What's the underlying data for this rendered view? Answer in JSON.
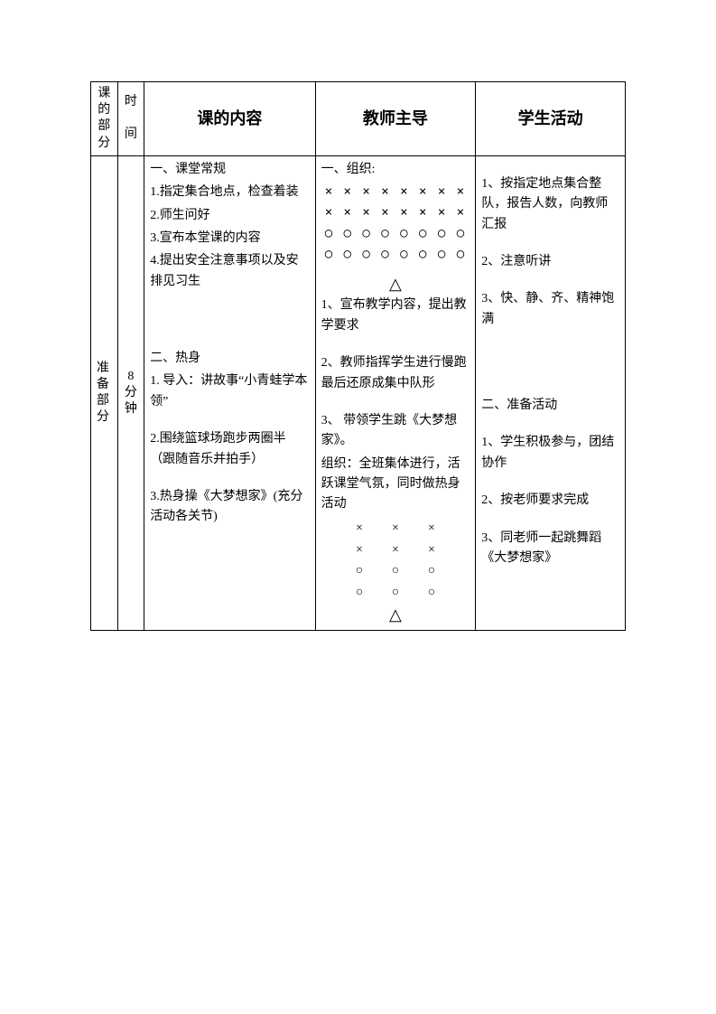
{
  "headers": {
    "part": "课的部分",
    "time": "时\n\n间",
    "content": "课的内容",
    "teacher": "教师主导",
    "student": "学生活动"
  },
  "row": {
    "partLabel": "准备部分",
    "timeLabel": "8分钟",
    "content": {
      "s1_title": "一、课堂常规",
      "s1_i1": "1.指定集合地点，检查着装",
      "s1_i2": "2.师生问好",
      "s1_i3": "3.宣布本堂课的内容",
      "s1_i4": "4.提出安全注意事项以及安排见习生",
      "s2_title": "二、热身",
      "s2_i1": "1. 导入：讲故事“小青蛙学本领”",
      "s2_i2": "2.围绕篮球场跑步两圈半（跟随音乐并拍手）",
      "s2_i3": "3.热身操《大梦想家》(充分活动各关节)"
    },
    "teacher": {
      "t1": "一、组织:",
      "formation1_r1": "× × × × × × × ×",
      "formation1_r2": "× × × × × × × ×",
      "formation1_r3": "○ ○ ○ ○ ○ ○ ○ ○",
      "formation1_r4": "○ ○ ○ ○ ○ ○ ○ ○",
      "triangle": "△",
      "t2": "1、宣布教学内容，提出教学要求",
      "t3": "2、教师指挥学生进行慢跑最后还原成集中队形",
      "t4": "3、 带领学生跳《大梦想家》。",
      "t5": "组织：全班集体进行，活跃课堂气氛，同时做热身活动",
      "f2_x": "×",
      "f2_o": "○"
    },
    "student": {
      "s1": "1、按指定地点集合整队，报告人数，向教师汇报",
      "s2": "2、注意听讲",
      "s3": "3、快、静、齐、精神饱满",
      "s4_title": "二、准备活动",
      "s4": "1、学生积极参与，团结协作",
      "s5": "2、按老师要求完成",
      "s6": "3、同老师一起跳舞蹈《大梦想家》"
    }
  }
}
